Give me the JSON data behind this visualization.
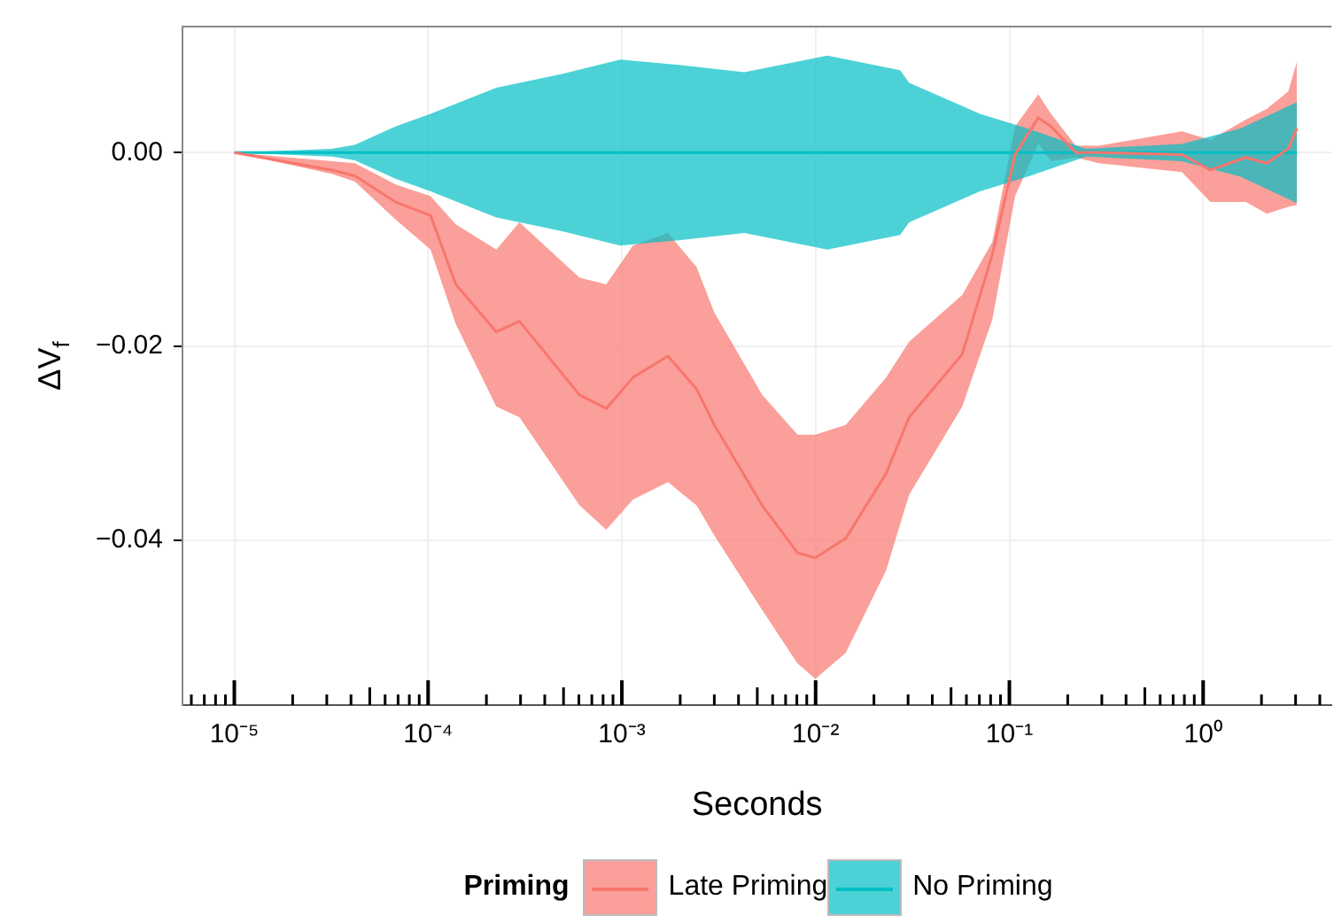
{
  "chart_data": {
    "type": "line",
    "xlabel": "Seconds",
    "ylabel": "ΔV$_{f}$",
    "legend_title": "Priming",
    "legend": "bottom",
    "grid": true,
    "log": "x",
    "xlim": [
      5.4e-06,
      4.6
    ],
    "ylim": [
      -0.057,
      0.013
    ],
    "xticks": [
      {
        "value": 6e-06,
        "label": null
      },
      {
        "value": 7e-06,
        "label": null
      },
      {
        "value": 8e-06,
        "label": null
      },
      {
        "value": 9e-06,
        "label": null
      },
      {
        "value": 1e-05,
        "label": "10⁻⁵"
      },
      {
        "value": 2e-05,
        "label": null
      },
      {
        "value": 3e-05,
        "label": null
      },
      {
        "value": 4e-05,
        "label": null
      },
      {
        "value": 5e-05,
        "label": null
      },
      {
        "value": 6e-05,
        "label": null
      },
      {
        "value": 7e-05,
        "label": null
      },
      {
        "value": 8e-05,
        "label": null
      },
      {
        "value": 9e-05,
        "label": null
      },
      {
        "value": 0.0001,
        "label": "10⁻⁴"
      },
      {
        "value": 0.0002,
        "label": null
      },
      {
        "value": 0.0003,
        "label": null
      },
      {
        "value": 0.0004,
        "label": null
      },
      {
        "value": 0.0005,
        "label": null
      },
      {
        "value": 0.0006,
        "label": null
      },
      {
        "value": 0.0007,
        "label": null
      },
      {
        "value": 0.0008,
        "label": null
      },
      {
        "value": 0.0009,
        "label": null
      },
      {
        "value": 0.001,
        "label": "10⁻³"
      },
      {
        "value": 0.002,
        "label": null
      },
      {
        "value": 0.003,
        "label": null
      },
      {
        "value": 0.004,
        "label": null
      },
      {
        "value": 0.005,
        "label": null
      },
      {
        "value": 0.006,
        "label": null
      },
      {
        "value": 0.007,
        "label": null
      },
      {
        "value": 0.008,
        "label": null
      },
      {
        "value": 0.009,
        "label": null
      },
      {
        "value": 0.01,
        "label": "10⁻²"
      },
      {
        "value": 0.02,
        "label": null
      },
      {
        "value": 0.03,
        "label": null
      },
      {
        "value": 0.04,
        "label": null
      },
      {
        "value": 0.05,
        "label": null
      },
      {
        "value": 0.06,
        "label": null
      },
      {
        "value": 0.07,
        "label": null
      },
      {
        "value": 0.08,
        "label": null
      },
      {
        "value": 0.09,
        "label": null
      },
      {
        "value": 0.1,
        "label": "10⁻¹"
      },
      {
        "value": 0.2,
        "label": null
      },
      {
        "value": 0.3,
        "label": null
      },
      {
        "value": 0.4,
        "label": null
      },
      {
        "value": 0.5,
        "label": null
      },
      {
        "value": 0.6,
        "label": null
      },
      {
        "value": 0.7,
        "label": null
      },
      {
        "value": 0.8,
        "label": null
      },
      {
        "value": 0.9,
        "label": null
      },
      {
        "value": 1,
        "label": "10⁰"
      },
      {
        "value": 2,
        "label": null
      },
      {
        "value": 3,
        "label": null
      },
      {
        "value": 4,
        "label": null
      }
    ],
    "yticks": [
      {
        "value": -0.04,
        "label": "−0.04"
      },
      {
        "value": -0.02,
        "label": "−0.02"
      },
      {
        "value": 0,
        "label": "0.00"
      }
    ],
    "series": [
      {
        "name": "Late Priming",
        "color": "#f8766d",
        "x": [
          1e-05,
          3.18e-05,
          4.19e-05,
          6.79e-05,
          0.000103,
          0.000139,
          0.000225,
          0.000296,
          0.000605,
          0.000831,
          0.00114,
          0.00173,
          0.00243,
          0.003,
          0.0053,
          0.00807,
          0.00996,
          0.0143,
          0.0231,
          0.0304,
          0.0571,
          0.0817,
          0.107,
          0.141,
          0.164,
          0.22,
          0.289,
          0.777,
          1.09,
          1.66,
          2.13,
          2.75,
          3.05
        ],
        "values": [
          0,
          -0.0018,
          -0.0024,
          -0.0051,
          -0.0065,
          -0.0136,
          -0.0185,
          -0.0174,
          -0.025,
          -0.0264,
          -0.0232,
          -0.021,
          -0.0244,
          -0.0281,
          -0.0364,
          -0.0413,
          -0.0418,
          -0.0398,
          -0.0331,
          -0.0273,
          -0.0208,
          -0.0105,
          -0.0002,
          0.0036,
          0.0027,
          0,
          0,
          -0.0002,
          -0.0018,
          -0.0005,
          -0.0011,
          0.0004,
          0.0025
        ],
        "upper": [
          0,
          -0.0009,
          -0.0011,
          -0.0033,
          -0.0045,
          -0.0074,
          -0.01,
          -0.0072,
          -0.0129,
          -0.0136,
          -0.0096,
          -0.0083,
          -0.0118,
          -0.0165,
          -0.025,
          -0.0291,
          -0.0291,
          -0.0281,
          -0.0232,
          -0.0195,
          -0.0147,
          -0.0092,
          0.0027,
          0.006,
          0.004,
          0.0007,
          0.0007,
          0.0022,
          0.0013,
          0.0034,
          0.0045,
          0.0063,
          0.0094
        ],
        "lower": [
          0,
          -0.0022,
          -0.003,
          -0.0069,
          -0.01,
          -0.0177,
          -0.0262,
          -0.0273,
          -0.0364,
          -0.0389,
          -0.0358,
          -0.034,
          -0.0364,
          -0.0395,
          -0.0472,
          -0.0527,
          -0.0543,
          -0.0516,
          -0.0431,
          -0.0353,
          -0.0262,
          -0.0172,
          -0.0045,
          0.0009,
          -0.0009,
          -0.0005,
          -0.0011,
          -0.002,
          -0.0051,
          -0.0051,
          -0.0063,
          -0.0056,
          -0.0054
        ]
      },
      {
        "name": "No Priming",
        "color": "#00bfc4",
        "x": [
          1e-05,
          3.18e-05,
          4.19e-05,
          6.79e-05,
          0.000103,
          0.000225,
          0.000491,
          0.00098,
          0.00185,
          0.00429,
          0.0115,
          0.0273,
          0.0304,
          0.0705,
          0.124,
          0.249,
          0.777,
          1.56,
          3.05
        ],
        "values": [
          0,
          0,
          0,
          0,
          0,
          0,
          0,
          0,
          0,
          0,
          0,
          0,
          0,
          0,
          0,
          0,
          0,
          0,
          0
        ],
        "upper": [
          0,
          0.0004,
          0.0008,
          0.0027,
          0.004,
          0.0067,
          0.0081,
          0.0096,
          0.0091,
          0.0083,
          0.01,
          0.0085,
          0.0072,
          0.004,
          0.0025,
          0.0004,
          0.0009,
          0.0025,
          0.0052
        ],
        "lower": [
          0,
          -0.0004,
          -0.0008,
          -0.0027,
          -0.004,
          -0.0067,
          -0.0081,
          -0.0096,
          -0.0091,
          -0.0083,
          -0.01,
          -0.0085,
          -0.0072,
          -0.004,
          -0.0025,
          -0.0004,
          -0.0009,
          -0.0025,
          -0.0052
        ]
      }
    ]
  }
}
